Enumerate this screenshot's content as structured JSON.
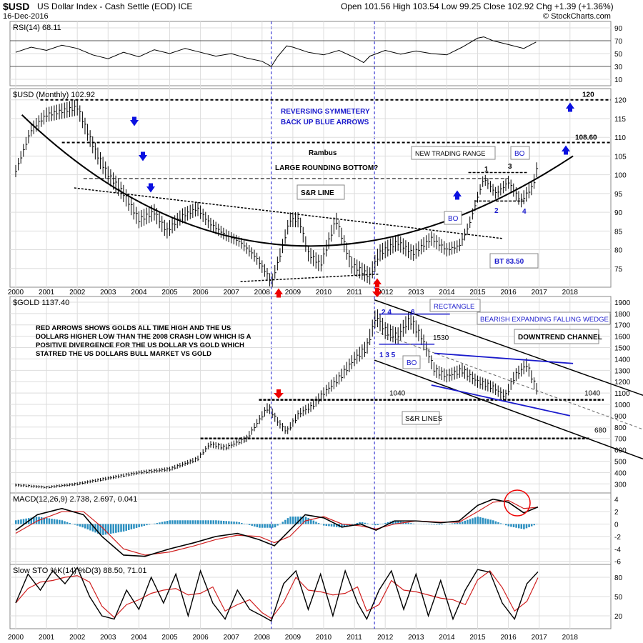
{
  "header": {
    "symbol": "$USD",
    "name": "US Dollar Index - Cash Settle (EOD) ICE",
    "date": "16-Dec-2016",
    "ohlc": "Open 101.56  High 103.54  Low 99.25  Close 102.92  Chg +1.39 (+1.36%)",
    "brand": "© StockCharts.com"
  },
  "colors": {
    "price": "#000000",
    "rsi": "#000000",
    "macd": "#000000",
    "signal": "#d02020",
    "hist": "#2a8fc0",
    "stoD": "#d02020",
    "annotation": "#1a1acc",
    "arrow_red": "#ee0000",
    "arrow_blue": "#0a10e0",
    "grid": "#dddddd",
    "vline": "#1a1acc",
    "overbought_fill": "#4a7a4a",
    "oversold_fill": "#b07070"
  },
  "chart_data": [
    {
      "type": "line",
      "panel": "rsi",
      "title": "RSI(14) 68.11",
      "ylim": [
        0,
        100
      ],
      "yticks": [
        10,
        30,
        50,
        70,
        90
      ],
      "series": [
        {
          "name": "RSI(14)",
          "x": [
            2000.0,
            2000.5,
            2001.0,
            2001.5,
            2002.0,
            2002.5,
            2003.0,
            2003.5,
            2004.0,
            2004.5,
            2005.0,
            2005.5,
            2006.0,
            2006.5,
            2007.0,
            2007.5,
            2008.0,
            2008.3,
            2008.5,
            2008.8,
            2009.0,
            2009.5,
            2010.0,
            2010.5,
            2011.0,
            2011.3,
            2011.5,
            2012.0,
            2012.5,
            2013.0,
            2013.5,
            2014.0,
            2014.5,
            2015.0,
            2015.2,
            2015.5,
            2016.0,
            2016.5,
            2016.9
          ],
          "values": [
            52,
            60,
            55,
            63,
            58,
            48,
            42,
            52,
            45,
            56,
            50,
            58,
            52,
            46,
            50,
            43,
            38,
            30,
            45,
            62,
            60,
            52,
            48,
            55,
            44,
            36,
            46,
            55,
            49,
            54,
            50,
            48,
            60,
            74,
            76,
            70,
            64,
            58,
            68
          ]
        }
      ]
    },
    {
      "type": "line",
      "panel": "usd",
      "title": "$USD (Monthly) 102.92",
      "ylim": [
        70,
        123
      ],
      "yticks": [
        75,
        80,
        85,
        90,
        95,
        100,
        105,
        110,
        115,
        120
      ],
      "x_ticks": [
        "2000",
        "2001",
        "2002",
        "2003",
        "2004",
        "2005",
        "2006",
        "2007",
        "2008",
        "2009",
        "2010",
        "2011",
        "2012",
        "2013",
        "2014",
        "2015",
        "2016",
        "2017",
        "2018"
      ],
      "series": [
        {
          "name": "$USD",
          "x": [
            2000.0,
            2000.5,
            2001.0,
            2001.5,
            2002.0,
            2002.3,
            2002.6,
            2003.0,
            2003.5,
            2004.0,
            2004.5,
            2004.9,
            2005.4,
            2005.9,
            2006.3,
            2006.8,
            2007.3,
            2007.8,
            2008.2,
            2008.3,
            2008.6,
            2008.9,
            2009.2,
            2009.5,
            2009.9,
            2010.4,
            2010.9,
            2011.3,
            2011.5,
            2011.8,
            2012.4,
            2012.9,
            2013.5,
            2014.0,
            2014.4,
            2014.7,
            2015.0,
            2015.2,
            2015.6,
            2016.0,
            2016.4,
            2016.8,
            2016.96
          ],
          "values": [
            101,
            112,
            116,
            117,
            118,
            112,
            106,
            100,
            95,
            88,
            90,
            85,
            89,
            91,
            87,
            84,
            82,
            78,
            73,
            71,
            79,
            88,
            88,
            79,
            76,
            88,
            76,
            74,
            73,
            79,
            82,
            79,
            83,
            80,
            81,
            86,
            94,
            99,
            95,
            98,
            93,
            97,
            102.92
          ]
        }
      ],
      "hlines": [
        {
          "y": 120,
          "label": "120"
        },
        {
          "y": 108.6,
          "label": "108.60"
        },
        {
          "y": 99
        }
      ],
      "annotations": [
        "REVERSING SYMMETERY",
        "BACK UP BLUE ARROWS",
        "Rambus",
        "LARGE ROUNDING BOTTOM?",
        "S&R LINE",
        "NEW TRADING RANGE",
        "BO",
        "BO",
        "BT 83.50",
        "1",
        "2",
        "3",
        "4"
      ]
    },
    {
      "type": "line",
      "panel": "gold",
      "title": "$GOLD 1137.40",
      "ylim": [
        220,
        1950
      ],
      "yticks": [
        300,
        400,
        500,
        600,
        700,
        800,
        900,
        1000,
        1100,
        1200,
        1300,
        1400,
        1500,
        1600,
        1700,
        1800,
        1900
      ],
      "series": [
        {
          "name": "$GOLD",
          "x": [
            2000.0,
            2001.0,
            2002.0,
            2003.0,
            2004.0,
            2005.0,
            2005.9,
            2006.3,
            2006.8,
            2007.5,
            2008.0,
            2008.2,
            2008.5,
            2008.8,
            2009.2,
            2009.6,
            2010.0,
            2010.5,
            2011.0,
            2011.4,
            2011.7,
            2012.0,
            2012.4,
            2012.8,
            2013.2,
            2013.6,
            2014.0,
            2014.5,
            2015.0,
            2015.5,
            2015.9,
            2016.2,
            2016.6,
            2016.9
          ],
          "values": [
            290,
            270,
            300,
            350,
            400,
            430,
            520,
            650,
            620,
            700,
            900,
            980,
            850,
            760,
            920,
            980,
            1100,
            1230,
            1400,
            1500,
            1780,
            1650,
            1600,
            1750,
            1580,
            1300,
            1250,
            1300,
            1200,
            1150,
            1070,
            1250,
            1350,
            1137
          ]
        }
      ],
      "hlines": [
        {
          "y": 1040,
          "label": "1040"
        },
        {
          "y": 680,
          "label": "680"
        },
        {
          "y": 1530,
          "label": "1530"
        }
      ],
      "annotations": [
        "RED ARROWS SHOWS GOLDS ALL TIME HIGH AND THE US DOLLARS HIGHER LOW THAN THE 2008 CRASH LOW WHICH IS A POSITIVE DIVERGENCE FOR THE US DOLLAR VS GOLD WHICH STATRED THE US DOLLARS BULL MARKET VS GOLD",
        "RECTANGLE",
        "BEARISH EXPANDING FALLING WEDGE",
        "DOWNTREND CHANNEL",
        "S&R LINES",
        "BO",
        "2 4",
        "1 3 5",
        "6"
      ]
    },
    {
      "type": "bar",
      "panel": "macd",
      "title": "MACD(12,26,9) 2.738, 2.697, 0.041",
      "ylim": [
        -6.5,
        5
      ],
      "yticks": [
        -6,
        -4,
        -2,
        0,
        2,
        4
      ],
      "series": [
        {
          "name": "MACD",
          "x": [
            2000.0,
            2000.7,
            2001.5,
            2002.2,
            2002.8,
            2003.5,
            2004.2,
            2005.0,
            2005.8,
            2006.5,
            2007.2,
            2007.9,
            2008.4,
            2008.9,
            2009.4,
            2010.0,
            2010.6,
            2011.2,
            2011.7,
            2012.3,
            2013.0,
            2013.8,
            2014.4,
            2015.0,
            2015.5,
            2016.0,
            2016.5,
            2016.96
          ],
          "values": [
            -1,
            1.5,
            2.5,
            1.5,
            -2,
            -5,
            -5.2,
            -4,
            -3,
            -2,
            -1.5,
            -2.5,
            -3.5,
            -1,
            1.5,
            1,
            -0.5,
            0,
            -1,
            0.5,
            0.5,
            0.2,
            0.5,
            3,
            4,
            3.5,
            1.8,
            2.738
          ]
        },
        {
          "name": "Signal",
          "x": [
            2000.0,
            2000.7,
            2001.5,
            2002.2,
            2002.8,
            2003.5,
            2004.2,
            2005.0,
            2005.8,
            2006.5,
            2007.2,
            2007.9,
            2008.4,
            2008.9,
            2009.4,
            2010.0,
            2010.6,
            2011.2,
            2011.7,
            2012.3,
            2013.0,
            2013.8,
            2014.4,
            2015.0,
            2015.5,
            2016.0,
            2016.5,
            2016.96
          ],
          "values": [
            -1.5,
            0.5,
            2,
            2,
            -0.5,
            -4,
            -5,
            -4.5,
            -3.5,
            -2.5,
            -1.8,
            -2,
            -3,
            -2,
            0.5,
            1.2,
            0,
            -0.3,
            -0.8,
            0,
            0.5,
            0.3,
            0.3,
            2,
            3.5,
            3.8,
            2.5,
            2.697
          ]
        }
      ]
    },
    {
      "type": "line",
      "panel": "sto",
      "title": "Slow STO %K(14) %D(3) 88.50, 71.01",
      "ylim": [
        0,
        100
      ],
      "yticks": [
        20,
        50,
        80
      ],
      "series": [
        {
          "name": "%K",
          "x": [
            2000.0,
            2000.4,
            2000.8,
            2001.2,
            2001.6,
            2002.0,
            2002.4,
            2002.8,
            2003.2,
            2003.6,
            2004.0,
            2004.4,
            2004.8,
            2005.2,
            2005.6,
            2006.0,
            2006.4,
            2006.8,
            2007.2,
            2007.6,
            2008.0,
            2008.3,
            2008.7,
            2009.1,
            2009.5,
            2009.9,
            2010.3,
            2010.7,
            2011.1,
            2011.4,
            2011.8,
            2012.2,
            2012.6,
            2013.0,
            2013.4,
            2013.8,
            2014.2,
            2014.6,
            2015.0,
            2015.4,
            2015.8,
            2016.2,
            2016.6,
            2016.96
          ],
          "values": [
            40,
            85,
            60,
            90,
            70,
            95,
            50,
            20,
            15,
            60,
            30,
            80,
            40,
            85,
            20,
            90,
            40,
            15,
            60,
            30,
            20,
            12,
            70,
            90,
            30,
            85,
            20,
            90,
            40,
            15,
            60,
            90,
            30,
            85,
            20,
            75,
            15,
            60,
            92,
            88,
            40,
            15,
            70,
            88.5
          ]
        }
      ]
    }
  ],
  "x_labels": [
    "2000",
    "2001",
    "2002",
    "2003",
    "2004",
    "2005",
    "2006",
    "2007",
    "2008",
    "2009",
    "2010",
    "2011",
    "2012",
    "2013",
    "2014",
    "2015",
    "2016",
    "2017",
    "2018"
  ]
}
